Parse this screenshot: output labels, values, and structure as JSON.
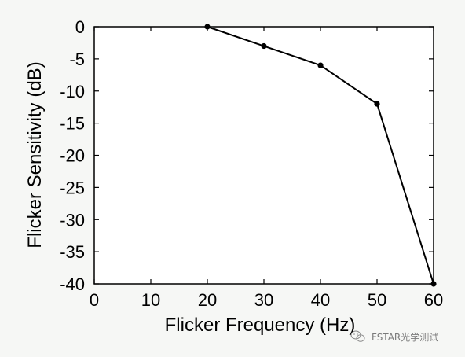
{
  "chart_data": {
    "type": "line",
    "title": "",
    "xlabel": "Flicker Frequency (Hz)",
    "ylabel": "Flicker Sensitivity (dB)",
    "xlim": [
      0,
      60
    ],
    "ylim": [
      -40,
      0
    ],
    "xticks": [
      0,
      10,
      20,
      30,
      40,
      50,
      60
    ],
    "yticks": [
      0,
      -5,
      -10,
      -15,
      -20,
      -25,
      -30,
      -35,
      -40
    ],
    "grid": false,
    "legend": "none",
    "series": [
      {
        "x": [
          20,
          30,
          40,
          50,
          60
        ],
        "y": [
          0,
          -3,
          -6,
          -12,
          -40
        ],
        "color": "#000000",
        "marker": "circle"
      }
    ]
  },
  "watermark": {
    "text": "FSTAR光学测试",
    "icon": "wechat-icon"
  },
  "colors": {
    "background": "#f6f7f5",
    "plot_background": "#ffffff",
    "line": "#000000",
    "watermark": "#7a7a7a"
  }
}
